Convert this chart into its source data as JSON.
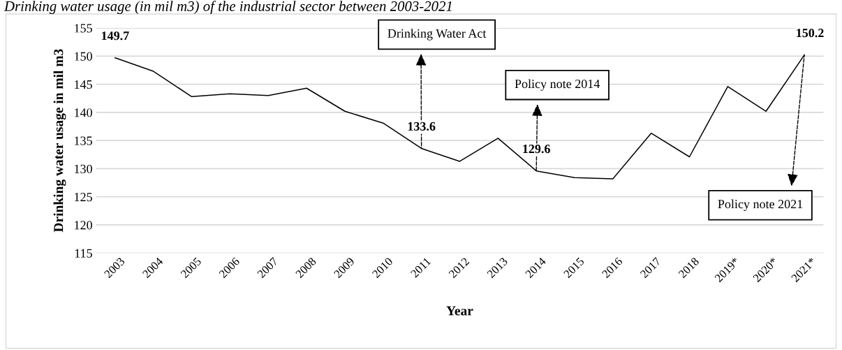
{
  "chart_data": {
    "type": "line",
    "title": "Drinking water usage (in mil m3) of the industrial sector between 2003-2021",
    "xlabel": "Year",
    "ylabel": "Drinking water usage in mil m3",
    "categories": [
      "2003",
      "2004",
      "2005",
      "2006",
      "2007",
      "2008",
      "2009",
      "2010",
      "2011",
      "2012",
      "2013",
      "2014",
      "2015",
      "2016",
      "2017",
      "2018",
      "2019*",
      "2020*",
      "2021*"
    ],
    "series": [
      {
        "color": "#000000",
        "values": [
          149.7,
          147.3,
          142.8,
          143.3,
          143.0,
          144.3,
          140.2,
          138.1,
          133.6,
          131.3,
          135.4,
          129.6,
          128.4,
          128.2,
          136.3,
          132.1,
          144.6,
          140.2,
          150.2
        ],
        "value_labels": [
          "149.7",
          null,
          null,
          null,
          null,
          null,
          null,
          null,
          "133.6",
          null,
          null,
          "129.6",
          null,
          null,
          null,
          null,
          null,
          null,
          "150.2"
        ]
      }
    ],
    "ylim": [
      115,
      155
    ],
    "yticks": [
      115,
      120,
      125,
      130,
      135,
      140,
      145,
      150,
      155
    ],
    "grid": "y",
    "marker": "none",
    "line_style": "solid",
    "annotations": [
      {
        "text": "Drinking Water Act",
        "x": "2011",
        "y": 133.6
      },
      {
        "text": "Policy note 2014",
        "x": "2014",
        "y": 129.6
      },
      {
        "text": "Policy note 2021",
        "x": "2021*",
        "y": 150.2
      }
    ]
  }
}
